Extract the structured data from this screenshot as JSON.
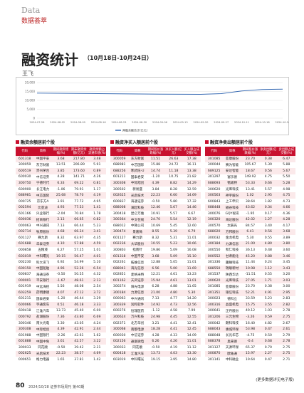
{
  "header": {
    "section_en": "Data",
    "section_cn": "数据荟萃"
  },
  "title": "融资统计",
  "date_range": "（10月18日-10月24日）",
  "author": "王飞",
  "chart_data": {
    "type": "line",
    "categories": [
      "2024-07-26",
      "2024-08-02",
      "2024-08-09",
      "2024-08-16",
      "2024-08-23",
      "2024-08-30",
      "2024-09-06",
      "2024-09-13",
      "2024-09-20",
      "2024-09-27",
      "2024-10-11",
      "2024-10-18",
      "2024-10-24"
    ],
    "series": [
      {
        "name": "两融余额合计(亿元)",
        "color": "#3b6db5",
        "values": [
          14100,
          14000,
          13900,
          13800,
          13700,
          13600,
          13500,
          13450,
          13400,
          13800,
          15300,
          16100,
          16300
        ]
      }
    ],
    "ylim": [
      0,
      20000
    ],
    "yticks": [
      0,
      {
        "value": 5000,
        "label": "5,000"
      },
      {
        "value": 10000,
        "label": "10,000"
      },
      {
        "value": 15000,
        "label": "15,000"
      },
      {
        "value": 20000,
        "label": "20,000"
      }
    ],
    "grid": true
  },
  "tables": [
    {
      "title": "融资余额居前个股",
      "columns": [
        "代码",
        "简称",
        "期间融资增幅(%)",
        "期末融资余额(亿元)",
        "融资余额占流通市值(%)"
      ],
      "rows": [
        [
          "601318",
          "中国平安",
          "3.68",
          "217.80",
          "3.48"
        ],
        [
          "300059",
          "东方财富",
          "13.51",
          "206.89",
          "5.91"
        ],
        [
          "600519",
          "贵州茅台",
          "3.85",
          "173.60",
          "0.89"
        ],
        [
          "600030",
          "中信证券",
          "4.28",
          "141.71",
          "4.26"
        ],
        [
          "300750",
          "宁德时代",
          "6.33",
          "69.22",
          "0.81"
        ],
        [
          "600900",
          "长江电力",
          "-1.06",
          "79.91",
          "1.17"
        ],
        [
          "688981",
          "中芯国际",
          "25.68",
          "78.70",
          "4.19"
        ],
        [
          "000725",
          "京东方A",
          "3.91",
          "77.72",
          "4.95"
        ],
        [
          "002594",
          "比亚迪",
          "4.93",
          "77.53",
          "1.41"
        ],
        [
          "601166",
          "兴业银行",
          "-2.04",
          "70.84",
          "1.78"
        ],
        [
          "600036",
          "招商银行",
          "2.13",
          "66.65",
          "0.82"
        ],
        [
          "000063",
          "中兴通讯",
          "7.13",
          "66.44",
          "5.23"
        ],
        [
          "002714",
          "牧原股份",
          "4.68",
          "66.24",
          "3.41"
        ],
        [
          "601127",
          "赛力斯",
          "8.32",
          "63.97",
          "4.35"
        ],
        [
          "601688",
          "华泰证券",
          "4.10",
          "57.88",
          "4.59"
        ],
        [
          "000858",
          "五粮液",
          "6.27",
          "57.25",
          "1.01"
        ],
        [
          "603019",
          "中科曙光",
          "19.15",
          "56.47",
          "4.01"
        ],
        [
          "002230",
          "科大讯飞",
          "0.92",
          "54.99",
          "5.10"
        ],
        [
          "600150",
          "中国船舶",
          "4.96",
          "52.26",
          "6.54"
        ],
        [
          "600837",
          "海通证券",
          "-0.50",
          "50.55",
          "4.32"
        ],
        [
          "000001",
          "平安银行",
          "-1.67",
          "48.61",
          "2.13"
        ],
        [
          "601919",
          "中远海控",
          "5.56",
          "48.08",
          "2.54"
        ],
        [
          "603259",
          "药明康德",
          "4.07",
          "47.12",
          "3.72"
        ],
        [
          "601211",
          "国泰君安",
          "-1.20",
          "46.44",
          "3.29"
        ],
        [
          "600066",
          "宇通客车",
          "0.51",
          "46.18",
          "3.33"
        ],
        [
          "600418",
          "江淮汽车",
          "13.73",
          "45.40",
          "6.00"
        ],
        [
          "000792",
          "盐湖股份",
          "7.36",
          "43.80",
          "6.69"
        ],
        [
          "300346",
          "南大光电",
          "3.30",
          "43.05",
          "4.24"
        ],
        [
          "300308",
          "中际旭创",
          "4.39",
          "42.91",
          "2.44"
        ],
        [
          "601988",
          "中国银行",
          "-2.26",
          "42.61",
          "1.62"
        ],
        [
          "601888",
          "中国中免",
          "3.61",
          "42.57",
          "3.22"
        ],
        [
          "300033",
          "同花顺",
          "-0.50",
          "39.42",
          "2.31"
        ],
        [
          "002625",
          "光启技术",
          "22.23",
          "38.57",
          "4.69"
        ],
        [
          "000651",
          "格力电器",
          "1.65",
          "37.81",
          "1.42"
        ]
      ]
    },
    {
      "title": "融资净买入额居前个股",
      "columns": [
        "代码",
        "简称",
        "期间股价涨跌幅(%)",
        "净买入额(亿元)",
        "买入额占成交额(%)"
      ],
      "rows": [
        [
          "300059",
          "东方财富",
          "11.51",
          "26.63",
          "17.38"
        ],
        [
          "688981",
          "中芯国际",
          "15.88",
          "24.72",
          "16.11"
        ],
        [
          "688256",
          "寒武纪-U",
          "14.74",
          "11.18",
          "13.38"
        ],
        [
          "601211",
          "国泰君安",
          "-1.20",
          "10.75",
          "21.82"
        ],
        [
          "300308",
          "中际旭创",
          "4.39",
          "8.82",
          "14.29"
        ],
        [
          "300502",
          "新易盛",
          "3.84",
          "8.28",
          "12.59"
        ],
        [
          "002625",
          "光启技术",
          "22.23",
          "6.60",
          "14.69"
        ],
        [
          "600837",
          "海通证券",
          "-0.50",
          "5.80",
          "17.32"
        ],
        [
          "688008",
          "澜起科技",
          "12.46",
          "5.67",
          "14.46"
        ],
        [
          "300418",
          "昆仑万维",
          "10.91",
          "5.57",
          "6.67"
        ],
        [
          "300364",
          "中文在线",
          "24.70",
          "5.54",
          "12.19"
        ],
        [
          "688012",
          "中微公司",
          "10.69",
          "5.45",
          "12.60"
        ],
        [
          "300474",
          "景嘉微",
          "8.55",
          "5.39",
          "6.79"
        ],
        [
          "601127",
          "赛力斯",
          "8.32",
          "5.31",
          "11.01"
        ],
        [
          "002236",
          "大华股份",
          "10.55",
          "5.23",
          "10.66"
        ],
        [
          "300803",
          "指南针",
          "19.86",
          "5.09",
          "16.08"
        ],
        [
          "601318",
          "中国平安",
          "3.68",
          "5.09",
          "15.10"
        ],
        [
          "002261",
          "拓维信息",
          "12.88",
          "5.05",
          "11.01"
        ],
        [
          "688041",
          "海光信息",
          "6.56",
          "5.00",
          "11.69"
        ],
        [
          "002851",
          "麦格米特",
          "12.21",
          "4.61",
          "13.23"
        ],
        [
          "601162",
          "天风证券",
          "15.94",
          "4.61",
          "13.01"
        ],
        [
          "300274",
          "阳光电源",
          "6.28",
          "4.88",
          "11.65"
        ],
        [
          "300184",
          "力源信息",
          "21.00",
          "4.80",
          "5.30"
        ],
        [
          "000063",
          "中兴通讯",
          "7.13",
          "4.77",
          "14.20"
        ],
        [
          "300339",
          "润和软件",
          "14.92",
          "4.73",
          "12.56"
        ],
        [
          "600276",
          "恒瑞医药",
          "-1.12",
          "4.58",
          "7.99"
        ],
        [
          "300624",
          "万兴科技",
          "24.98",
          "4.45",
          "12.55"
        ],
        [
          "002371",
          "北方华创",
          "3.21",
          "4.41",
          "12.41"
        ],
        [
          "300068",
          "南都电源",
          "18.28",
          "4.41",
          "12.45"
        ],
        [
          "600030",
          "中信证券",
          "4.28",
          "4.33",
          "14.09"
        ],
        [
          "002156",
          "通富微电",
          "6.26",
          "4.26",
          "11.01"
        ],
        [
          "300033",
          "同花顺",
          "-0.50",
          "4.19",
          "11.12"
        ],
        [
          "600418",
          "江淮汽车",
          "13.73",
          "4.03",
          "13.30"
        ],
        [
          "603019",
          "中科曙光",
          "19.15",
          "3.95",
          "14.80"
        ]
      ]
    },
    {
      "title": "融资净卖出额居前个股",
      "columns": [
        "代码",
        "简称",
        "期间股价涨跌幅(%)",
        "净卖出额(亿元)",
        "卖出额占成交额(%)"
      ],
      "rows": [
        [
          "301085",
          "亚康股份",
          "23.70",
          "0.38",
          "6.47"
        ],
        [
          "300044",
          "赛为智能",
          "105.67",
          "5.39",
          "5.88"
        ],
        [
          "689125",
          "安达智能",
          "18.67",
          "0.56",
          "5.67"
        ],
        [
          "301297",
          "富乐德",
          "149.92",
          "4.75",
          "5.50"
        ],
        [
          "688693",
          "锴威特",
          "53.33",
          "0.66",
          "5.28"
        ],
        [
          "300620",
          "光库科技",
          "13.41",
          "5.57",
          "4.98"
        ],
        [
          "300563",
          "神宇股份",
          "1.02",
          "2.95",
          "4.75"
        ],
        [
          "600843",
          "上工申贝",
          "38.64",
          "1.82",
          "4.73"
        ],
        [
          "688448",
          "磁谷科技",
          "43.62",
          "0.34",
          "4.66"
        ],
        [
          "300076",
          "GQY视讯",
          "-1.95",
          "0.17",
          "4.36"
        ],
        [
          "300320",
          "海达股份",
          "42.02",
          "1.27",
          "4.28"
        ],
        [
          "300570",
          "太辰光",
          "84.57",
          "3.40",
          "4.17"
        ],
        [
          "688020",
          "方邦股份",
          "6.41",
          "0.56",
          "3.68"
        ],
        [
          "300032",
          "金龙机电",
          "5.30",
          "0.55",
          "3.89"
        ],
        [
          "300184",
          "力源信息",
          "21.00",
          "4.80",
          "3.80"
        ],
        [
          "300550",
          "和仁科技",
          "36.13",
          "0.48",
          "3.60"
        ],
        [
          "000552",
          "甘肃能化",
          "45.20",
          "0.88",
          "3.46"
        ],
        [
          "301336",
          "趣睡科技",
          "11.44",
          "0.24",
          "3.45"
        ],
        [
          "688550",
          "瑞联新材",
          "10.98",
          "1.12",
          "3.43"
        ],
        [
          "301537",
          "陕西华达",
          "-11.51",
          "0.55",
          "3.20"
        ],
        [
          "300620",
          "光库科技",
          "27.05",
          "1.71",
          "3.03"
        ],
        [
          "301085",
          "亚康股份",
          "23.70",
          "0.38",
          "3.00"
        ],
        [
          "301351",
          "银信科技",
          "52.21",
          "4.91",
          "2.95"
        ],
        [
          "300023",
          "德科立",
          "33.59",
          "5.23",
          "2.83"
        ],
        [
          "300316",
          "晶盛机电",
          "15.75",
          "3.55",
          "2.82"
        ],
        [
          "300641",
          "正丹股份",
          "49.12",
          "1.03",
          "2.78"
        ],
        [
          "301206",
          "三元生物",
          "-3.26",
          "0.59",
          "2.75"
        ],
        [
          "300042",
          "朗科科技",
          "16.40",
          "4.82",
          "2.67"
        ],
        [
          "688043",
          "惠城环保",
          "53.98",
          "0.47",
          "2.61"
        ],
        [
          "688048",
          "长光华芯",
          "-4.75",
          "0.50",
          "2.79"
        ],
        [
          "688378",
          "奥来德",
          "-0.4",
          "0.68",
          "2.78"
        ],
        [
          "301127",
          "天源环保",
          "65.37",
          "0.70",
          "2.75"
        ],
        [
          "300870",
          "欧陆通",
          "15.97",
          "2.27",
          "2.75"
        ],
        [
          "301141",
          "中科磁业",
          "19.64",
          "0.47",
          "2.71"
        ]
      ]
    }
  ],
  "note": "(更多数据详见电子版)",
  "footer": {
    "page": "80",
    "text": "2024/10/28 证券市场周刊 第40期"
  }
}
